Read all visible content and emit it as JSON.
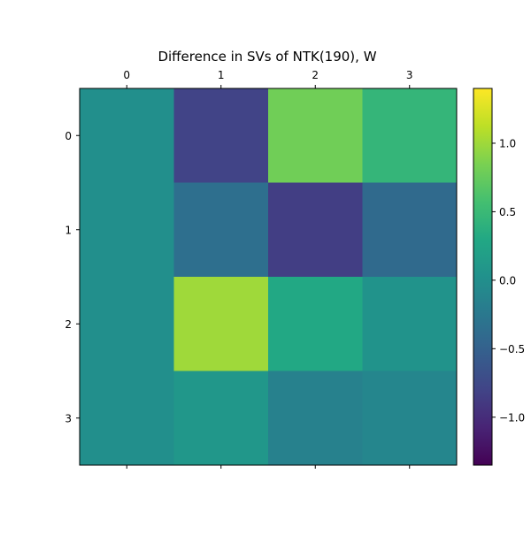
{
  "chart_data": {
    "type": "heatmap",
    "title": "Difference in SVs of NTK(190), W",
    "xlabel": "",
    "ylabel": "",
    "x_ticks": [
      "0",
      "1",
      "2",
      "3"
    ],
    "y_ticks": [
      "0",
      "1",
      "2",
      "3"
    ],
    "x_tick_position": "top-and-bottom",
    "values": [
      [
        0.0,
        -0.8,
        0.8,
        0.45
      ],
      [
        0.0,
        -0.35,
        -0.85,
        -0.4
      ],
      [
        0.0,
        1.0,
        0.3,
        0.05
      ],
      [
        0.0,
        0.1,
        -0.15,
        -0.1
      ]
    ],
    "color_range": [
      -1.35,
      1.4
    ],
    "colormap": "viridis",
    "colorbar": {
      "ticks": [
        1.0,
        0.5,
        0.0,
        -0.5,
        -1.0
      ],
      "tick_labels": [
        "1.0",
        "0.5",
        "0.0",
        "−0.5",
        "−1.0"
      ],
      "position": "right"
    },
    "grid": false
  }
}
